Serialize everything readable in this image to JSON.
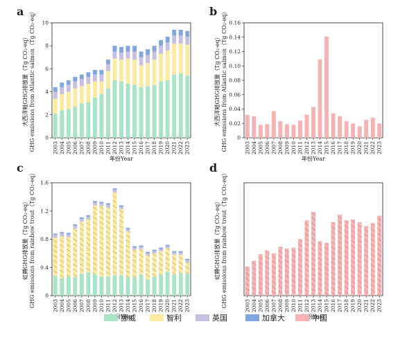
{
  "legend": [
    {
      "label": "挪威",
      "color": "#a9e4c5"
    },
    {
      "label": "智利",
      "color": "#fbeaa0"
    },
    {
      "label": "英国",
      "color": "#c7c0e4"
    },
    {
      "label": "加拿大",
      "color": "#7fa6dd"
    },
    {
      "label": "中国",
      "color": "#f6b3b3"
    }
  ],
  "chart_data": [
    {
      "panel": "a",
      "type": "bar",
      "stacked": true,
      "ylabel": "大西洋鲑GHG排放量（Tg CO₂-eq）",
      "ylabel2": "GHG emissions from Atlantic salmon（Tg CO₂-eq）",
      "xlabel": "年份Year",
      "ylim": [
        0,
        10
      ],
      "yticks": [
        0,
        2,
        4,
        6,
        8,
        10
      ],
      "categories": [
        "2003",
        "2004",
        "2005",
        "2006",
        "2007",
        "2008",
        "2009",
        "2010",
        "2011",
        "2012",
        "2013",
        "2014",
        "2015",
        "2016",
        "2017",
        "2018",
        "2019",
        "2020",
        "2021",
        "2022",
        "2023"
      ],
      "series": [
        {
          "name": "挪威",
          "values": [
            2.1,
            2.4,
            2.5,
            2.7,
            3.0,
            3.1,
            3.5,
            3.8,
            4.3,
            5.0,
            4.9,
            4.7,
            4.6,
            4.4,
            4.5,
            4.6,
            4.9,
            5.0,
            5.5,
            5.6,
            5.4
          ]
        },
        {
          "name": "智利",
          "values": [
            1.3,
            1.4,
            1.5,
            1.6,
            1.5,
            1.6,
            1.4,
            1.1,
            1.5,
            1.9,
            1.9,
            2.2,
            2.2,
            1.9,
            2.0,
            2.2,
            2.4,
            2.6,
            2.7,
            2.6,
            2.7
          ]
        },
        {
          "name": "英国",
          "values": [
            0.6,
            0.6,
            0.6,
            0.6,
            0.6,
            0.6,
            0.6,
            0.6,
            0.6,
            0.6,
            0.6,
            0.6,
            0.7,
            0.7,
            0.7,
            0.7,
            0.7,
            0.7,
            0.7,
            0.7,
            0.7
          ]
        },
        {
          "name": "加拿大",
          "values": [
            0.4,
            0.4,
            0.4,
            0.4,
            0.4,
            0.4,
            0.4,
            0.4,
            0.4,
            0.5,
            0.5,
            0.5,
            0.5,
            0.5,
            0.5,
            0.5,
            0.5,
            0.5,
            0.5,
            0.5,
            0.5
          ]
        }
      ]
    },
    {
      "panel": "b",
      "type": "bar",
      "ylabel": "大西洋鲑GHG排放量（Tg CO₂-eq）",
      "ylabel2": "GHG emissions from Atlantic salmon（Tg CO₂-eq）",
      "xlabel": "年份Year",
      "ylim": [
        0,
        0.16
      ],
      "yticks": [
        0,
        0.02,
        0.04,
        0.06,
        0.08,
        0.1,
        0.12,
        0.14,
        0.16
      ],
      "ytick_labels": [
        "0",
        "0.02",
        "0.04",
        "0.06",
        "0.08",
        "0.10",
        "0.12",
        "0.14",
        "0.16"
      ],
      "categories": [
        "2003",
        "2004",
        "2005",
        "2006",
        "2007",
        "2008",
        "2009",
        "2010",
        "2011",
        "2012",
        "2013",
        "2014",
        "2015",
        "2016",
        "2017",
        "2018",
        "2019",
        "2020",
        "2021",
        "2022",
        "2023"
      ],
      "series": [
        {
          "name": "中国",
          "values": [
            0.032,
            0.03,
            0.018,
            0.019,
            0.037,
            0.023,
            0.019,
            0.018,
            0.024,
            0.032,
            0.043,
            0.109,
            0.141,
            0.034,
            0.03,
            0.023,
            0.02,
            0.016,
            0.025,
            0.028,
            0.02
          ]
        }
      ]
    },
    {
      "panel": "c",
      "type": "bar",
      "stacked": true,
      "ylabel": "虹鳟GHG排放量（Tg CO₂-eq）",
      "ylabel2": "GHG emissions from rainbow trout（Tg CO₂-eq）",
      "xlabel": "年份Year",
      "ylim": [
        0,
        1.6
      ],
      "yticks": [
        0,
        0.4,
        0.8,
        1.2,
        1.6
      ],
      "ytick_labels": [
        "0",
        "0.4",
        "0.8",
        "1.2",
        "1.6"
      ],
      "categories": [
        "2003",
        "2004",
        "2005",
        "2006",
        "2007",
        "2008",
        "2009",
        "2010",
        "2011",
        "2012",
        "2013",
        "2014",
        "2015",
        "2016",
        "2017",
        "2018",
        "2019",
        "2020",
        "2021",
        "2022",
        "2023"
      ],
      "series": [
        {
          "name": "挪威",
          "values": [
            0.28,
            0.25,
            0.27,
            0.26,
            0.31,
            0.33,
            0.3,
            0.27,
            0.27,
            0.29,
            0.29,
            0.26,
            0.26,
            0.3,
            0.23,
            0.27,
            0.3,
            0.34,
            0.3,
            0.32,
            0.31
          ]
        },
        {
          "name": "智利",
          "values": [
            0.54,
            0.59,
            0.56,
            0.69,
            0.74,
            0.75,
            0.98,
            1.0,
            0.98,
            1.17,
            0.94,
            0.65,
            0.39,
            0.36,
            0.34,
            0.33,
            0.33,
            0.33,
            0.28,
            0.26,
            0.16
          ]
        },
        {
          "name": "英国",
          "values": [
            0.04,
            0.04,
            0.04,
            0.04,
            0.04,
            0.04,
            0.04,
            0.04,
            0.04,
            0.04,
            0.03,
            0.03,
            0.03,
            0.03,
            0.03,
            0.03,
            0.03,
            0.03,
            0.03,
            0.03,
            0.03
          ]
        },
        {
          "name": "加拿大",
          "values": [
            0.02,
            0.02,
            0.02,
            0.02,
            0.02,
            0.02,
            0.02,
            0.02,
            0.02,
            0.02,
            0.02,
            0.02,
            0.02,
            0.02,
            0.02,
            0.02,
            0.02,
            0.02,
            0.02,
            0.02,
            0.02
          ]
        }
      ]
    },
    {
      "panel": "d",
      "type": "bar",
      "ylabel": "虹鳟GHG排放量（Tg CO₂-eq）",
      "ylabel2": "GHG emissions from rainbow trout（Tg CO₂-eq）",
      "xlabel": "年份Year",
      "ylim": [
        0,
        0.6
      ],
      "categories": [
        "2003",
        "2004",
        "2005",
        "2006",
        "2007",
        "2008",
        "2009",
        "2010",
        "2011",
        "2012",
        "2013",
        "2014",
        "2015",
        "2016",
        "2017",
        "2018",
        "2019",
        "2020",
        "2021",
        "2022",
        "2023"
      ],
      "series": [
        {
          "name": "中国",
          "values": [
            0.155,
            0.185,
            0.22,
            0.24,
            0.225,
            0.26,
            0.25,
            0.255,
            0.3,
            0.4,
            0.445,
            0.29,
            0.28,
            0.39,
            0.43,
            0.4,
            0.405,
            0.39,
            0.37,
            0.385,
            0.425
          ]
        }
      ]
    }
  ]
}
